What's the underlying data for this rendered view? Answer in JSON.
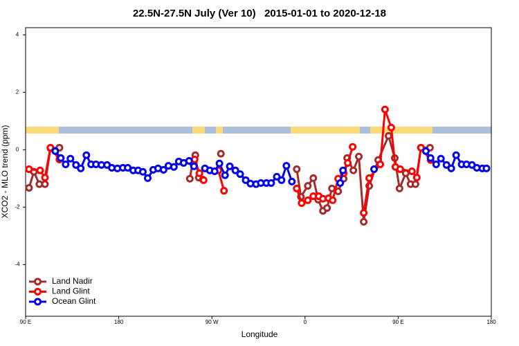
{
  "chart_data": {
    "type": "line",
    "title": "22.5N-27.5N July (Ver 10)   2015-01-01 to 2020-12-18",
    "xlabel": "Longitude",
    "ylabel": "XCO2 - MLO trend (ppm)",
    "xlim": [
      90,
      540
    ],
    "ylim": [
      -5.8,
      4.25
    ],
    "xticks": [
      {
        "value": 90,
        "label": "90 E"
      },
      180,
      {
        "value": 270,
        "label": "90 W"
      },
      {
        "value": 360,
        "label": "0"
      },
      {
        "value": 450,
        "label": "90 E"
      },
      {
        "value": 540,
        "label": "180"
      }
    ],
    "yticks": [
      4,
      2,
      0,
      -2,
      -4
    ],
    "legend": "bottom-left",
    "series": [
      {
        "name": "Land Nadir",
        "color": "#a52a2a",
        "x": [
          93.3,
          98,
          103.3,
          108.7,
          114,
          122.7,
          null,
          248.7,
          251.3,
          254,
          257.3,
          261.3,
          null,
          278.7,
          null,
          352,
          356,
          362.7,
          368,
          372.7,
          377.3,
          381.3,
          386,
          392,
          397.3,
          400.7,
          406.7,
          412,
          416.7,
          422,
          430.7,
          440.7,
          446.7,
          451.3,
          457.3,
          462,
          466.7,
          472,
          480.7
        ],
        "values": [
          -1.33,
          -0.77,
          -1.2,
          -1.2,
          0.05,
          0.07,
          null,
          -1.01,
          -0.46,
          -0.19,
          -0.97,
          -1.04,
          null,
          -0.14,
          null,
          -0.68,
          -1.64,
          -1.26,
          -0.99,
          -1.74,
          -2.13,
          -2.03,
          -1.35,
          -1.45,
          -1.01,
          -0.29,
          -0.72,
          -0.24,
          -2.51,
          -1.26,
          -0.36,
          0.48,
          -0.29,
          -1.35,
          -0.82,
          -1.2,
          -1.2,
          0.07,
          0.07
        ]
      },
      {
        "name": "Land Glint",
        "color": "#ff0000",
        "x": [
          93.3,
          104,
          108.7,
          114,
          122.7,
          null,
          253.3,
          258,
          262,
          null,
          276.3,
          281.7,
          null,
          352,
          356.7,
          362.7,
          368,
          373.3,
          377.3,
          382.7,
          386.7,
          392,
          397.3,
          401.3,
          406,
          null,
          416.7,
          422,
          432.7,
          437.3,
          443.3,
          447.3,
          452,
          463.3,
          468,
          472,
          481.3
        ],
        "values": [
          -0.68,
          -0.72,
          -0.97,
          0.07,
          -0.34,
          null,
          -0.34,
          -0.82,
          -1.06,
          null,
          -0.72,
          -1.43,
          null,
          -1.35,
          -1.86,
          -1.76,
          -1.62,
          -1.62,
          -1.71,
          -1.69,
          -1.76,
          -1.01,
          -0.82,
          -0.46,
          0.1,
          null,
          -2.2,
          -0.99,
          -0.51,
          1.4,
          0.77,
          -0.6,
          -0.68,
          -0.75,
          -0.97,
          0.07,
          -0.36
        ]
      },
      {
        "name": "Ocean Glint",
        "color": "#0000ee",
        "x": [
          118.7,
          124,
          128.7,
          133.3,
          138.7,
          143.3,
          148.7,
          153.3,
          158,
          163.3,
          168.7,
          173.3,
          178.7,
          184,
          188.7,
          194,
          198.7,
          203.3,
          208,
          213.3,
          218,
          223.3,
          228,
          233.3,
          238,
          242.7,
          248,
          252.7,
          null,
          263.3,
          268,
          272.7,
          277.3,
          282.7,
          287.3,
          292.7,
          297.3,
          302.7,
          307.3,
          312.7,
          317.3,
          322.7,
          327.3,
          332.7,
          337.3,
          342,
          347.3,
          null,
          394,
          396.7,
          null,
          426.7,
          null,
          476.7,
          481.3,
          486.7,
          491.3,
          496.7,
          501.3,
          506,
          511.3,
          516,
          521.3,
          526,
          531.3,
          535.3
        ],
        "values": [
          -0.05,
          -0.29,
          -0.51,
          -0.31,
          -0.53,
          -0.65,
          -0.19,
          -0.51,
          -0.51,
          -0.53,
          -0.53,
          -0.63,
          -0.65,
          -0.63,
          -0.63,
          -0.72,
          -0.72,
          -0.77,
          -0.99,
          -0.7,
          -0.65,
          -0.7,
          -0.56,
          -0.6,
          -0.41,
          -0.46,
          -0.39,
          -0.58,
          null,
          -0.65,
          -0.72,
          -0.75,
          -0.48,
          -0.89,
          -0.58,
          -0.72,
          -0.85,
          -1.06,
          -1.18,
          -1.2,
          -1.16,
          -1.16,
          -1.16,
          -0.94,
          -1.06,
          -0.56,
          -1.11,
          null,
          -1.16,
          -0.72,
          null,
          -0.68,
          null,
          -0.05,
          -0.29,
          -0.51,
          -0.31,
          -0.53,
          -0.65,
          -0.19,
          -0.51,
          -0.51,
          -0.53,
          -0.63,
          -0.65,
          -0.65
        ]
      }
    ]
  }
}
